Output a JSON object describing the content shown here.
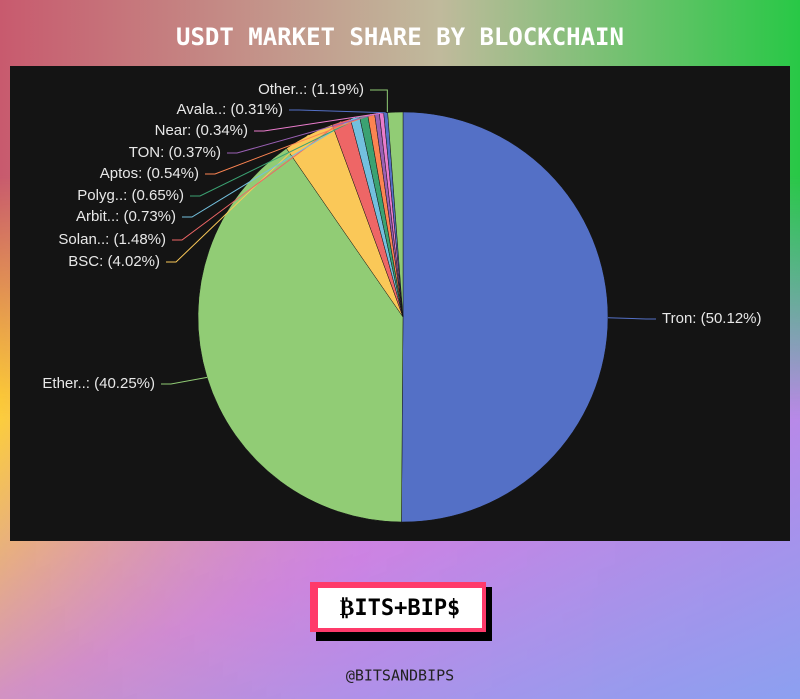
{
  "chart_data": {
    "type": "pie",
    "title": "USDT MARKET SHARE BY BLOCKCHAIN",
    "categories": [
      "Tron:",
      "Ether..:",
      "BSC:",
      "Solan..:",
      "Arbit..:",
      "Polyg..:",
      "Aptos:",
      "TON:",
      "Near:",
      "Avala..:",
      "Other..:"
    ],
    "values": [
      50.12,
      40.25,
      4.02,
      1.48,
      0.73,
      0.65,
      0.54,
      0.37,
      0.34,
      0.31,
      1.19
    ],
    "value_labels": [
      "(50.12%)",
      "(40.25%)",
      "(4.02%)",
      "(1.48%)",
      "(0.73%)",
      "(0.65%)",
      "(0.54%)",
      "(0.37%)",
      "(0.34%)",
      "(0.31%)",
      "(1.19%)"
    ],
    "colors": [
      "#5470c6",
      "#91cc75",
      "#fac858",
      "#ee6666",
      "#73c0de",
      "#3ba272",
      "#fc8452",
      "#9a60b4",
      "#ea7ccc",
      "#5470c6",
      "#91cc75"
    ]
  },
  "footer": {
    "logo": "₿ITS+BIP$",
    "handle": "@BITSANDBIPS"
  }
}
